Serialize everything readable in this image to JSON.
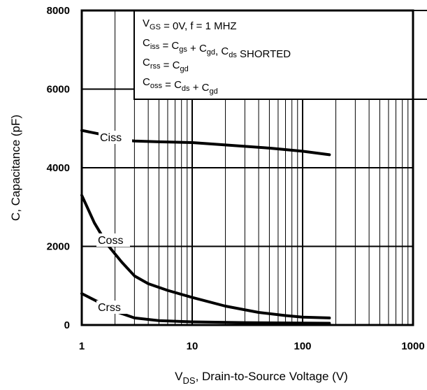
{
  "chart_data": {
    "type": "line",
    "x_scale": "log",
    "xlim": [
      1,
      1000
    ],
    "ylim": [
      0,
      8000
    ],
    "x_ticks": [
      "1",
      "10",
      "100",
      "1000"
    ],
    "y_ticks": [
      "0",
      "2000",
      "4000",
      "6000",
      "8000"
    ],
    "grid": "on",
    "xlabel": {
      "pre": "V",
      "sub": "DS",
      "post": ", Drain-to-Source Voltage (V)"
    },
    "ylabel": "C, Capacitance (pF)",
    "conditions": [
      {
        "parts": [
          [
            "V",
            ""
          ],
          [
            "GS",
            "sub"
          ],
          [
            "  = 0V,       f = 1 MHZ",
            ""
          ]
        ]
      },
      {
        "parts": [
          [
            "C",
            ""
          ],
          [
            "iss",
            "sub"
          ],
          [
            "  = C",
            ""
          ],
          [
            "gs",
            "sub"
          ],
          [
            " + C",
            ""
          ],
          [
            "gd",
            "sub"
          ],
          [
            ",  C",
            ""
          ],
          [
            "ds",
            "sub"
          ],
          [
            " SHORTED",
            ""
          ]
        ]
      },
      {
        "parts": [
          [
            "C",
            ""
          ],
          [
            "rss",
            "sub"
          ],
          [
            "  = C",
            ""
          ],
          [
            "gd",
            "sub"
          ]
        ]
      },
      {
        "parts": [
          [
            "C",
            ""
          ],
          [
            "oss",
            "sub"
          ],
          [
            "  = C",
            ""
          ],
          [
            "ds",
            "sub"
          ],
          [
            " + C",
            ""
          ],
          [
            "gd",
            "sub"
          ]
        ]
      }
    ],
    "series": [
      {
        "name": "Ciss",
        "points": [
          [
            1,
            4950
          ],
          [
            1.5,
            4850
          ],
          [
            2,
            4730
          ],
          [
            3,
            4680
          ],
          [
            5,
            4660
          ],
          [
            10,
            4640
          ],
          [
            20,
            4580
          ],
          [
            50,
            4500
          ],
          [
            100,
            4420
          ],
          [
            175,
            4330
          ]
        ]
      },
      {
        "name": "Coss",
        "points": [
          [
            1,
            3300
          ],
          [
            1.3,
            2600
          ],
          [
            1.7,
            2050
          ],
          [
            2.3,
            1600
          ],
          [
            3,
            1250
          ],
          [
            4,
            1050
          ],
          [
            6,
            880
          ],
          [
            10,
            700
          ],
          [
            20,
            480
          ],
          [
            40,
            320
          ],
          [
            70,
            240
          ],
          [
            100,
            200
          ],
          [
            175,
            180
          ]
        ]
      },
      {
        "name": "Crss",
        "points": [
          [
            1,
            800
          ],
          [
            1.5,
            550
          ],
          [
            2,
            350
          ],
          [
            3,
            180
          ],
          [
            5,
            110
          ],
          [
            10,
            80
          ],
          [
            30,
            60
          ],
          [
            100,
            50
          ],
          [
            175,
            45
          ]
        ]
      }
    ]
  }
}
